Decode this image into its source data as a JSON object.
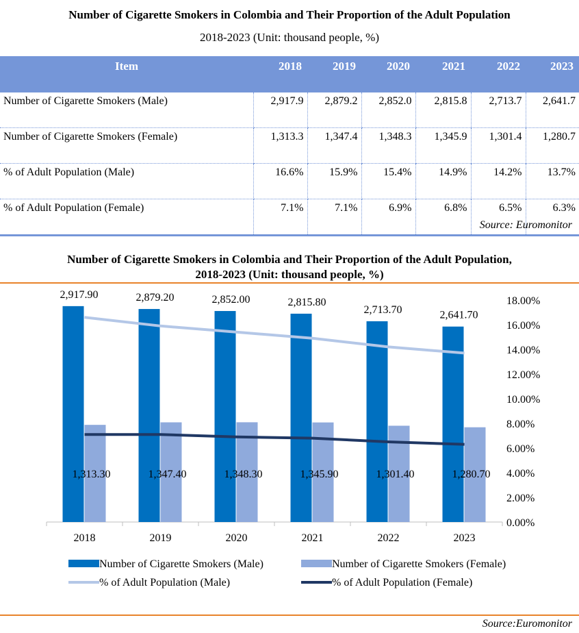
{
  "table": {
    "title": "Number of Cigarette Smokers in Colombia and Their Proportion of the Adult Population",
    "subtitle": "2018-2023 (Unit:  thousand people, %)",
    "headers": [
      "Item",
      "2018",
      "2019",
      "2020",
      "2021",
      "2022",
      "2023"
    ],
    "rows": [
      [
        "Number of Cigarette  Smokers (Male)",
        "2,917.9",
        "2,879.2",
        "2,852.0",
        "2,815.8",
        "2,713.7",
        "2,641.7"
      ],
      [
        "Number of Cigarette  Smokers (Female)",
        "1,313.3",
        "1,347.4",
        "1,348.3",
        "1,345.9",
        "1,301.4",
        "1,280.7"
      ],
      [
        "% of Adult Population (Male)",
        "16.6%",
        "15.9%",
        "15.4%",
        "14.9%",
        "14.2%",
        "13.7%"
      ],
      [
        "% of Adult Population (Female)",
        "7.1%",
        "7.1%",
        "6.9%",
        "6.8%",
        "6.5%",
        "6.3%"
      ]
    ],
    "source": "Source:  Euromonitor"
  },
  "chart_data": {
    "type": "bar",
    "title_line1": "Number of Cigarette Smokers in Colombia and Their Proportion of the Adult Population,",
    "title_line2": "2018-2023 (Unit:  thousand people, %)",
    "categories": [
      "2018",
      "2019",
      "2020",
      "2021",
      "2022",
      "2023"
    ],
    "bar_series": [
      {
        "name": "Number of Cigarette Smokers (Male)",
        "color": "#0070c0",
        "values": [
          2917.9,
          2879.2,
          2852.0,
          2815.8,
          2713.7,
          2641.7
        ],
        "labels": [
          "2,917.90",
          "2,879.20",
          "2,852.00",
          "2,815.80",
          "2,713.70",
          "2,641.70"
        ]
      },
      {
        "name": "Number of Cigarette Smokers (Female)",
        "color": "#8faadc",
        "values": [
          1313.3,
          1347.4,
          1348.3,
          1345.9,
          1301.4,
          1280.7
        ],
        "labels": [
          "1,313.30",
          "1,347.40",
          "1,348.30",
          "1,345.90",
          "1,301.40",
          "1,280.70"
        ]
      }
    ],
    "line_series": [
      {
        "name": "% of Adult Population (Male)",
        "color": "#b4c7e7",
        "values": [
          16.6,
          15.9,
          15.4,
          14.9,
          14.2,
          13.7
        ]
      },
      {
        "name": "% of Adult Population (Female)",
        "color": "#203864",
        "values": [
          7.1,
          7.1,
          6.9,
          6.8,
          6.5,
          6.3
        ]
      }
    ],
    "ylim_left": [
      0,
      3000
    ],
    "ylim_right": [
      0,
      18
    ],
    "right_ticks": [
      "0.00%",
      "2.00%",
      "4.00%",
      "6.00%",
      "8.00%",
      "10.00%",
      "12.00%",
      "14.00%",
      "16.00%",
      "18.00%"
    ],
    "legend_position": "bottom",
    "source": "Source:Euromonitor"
  }
}
